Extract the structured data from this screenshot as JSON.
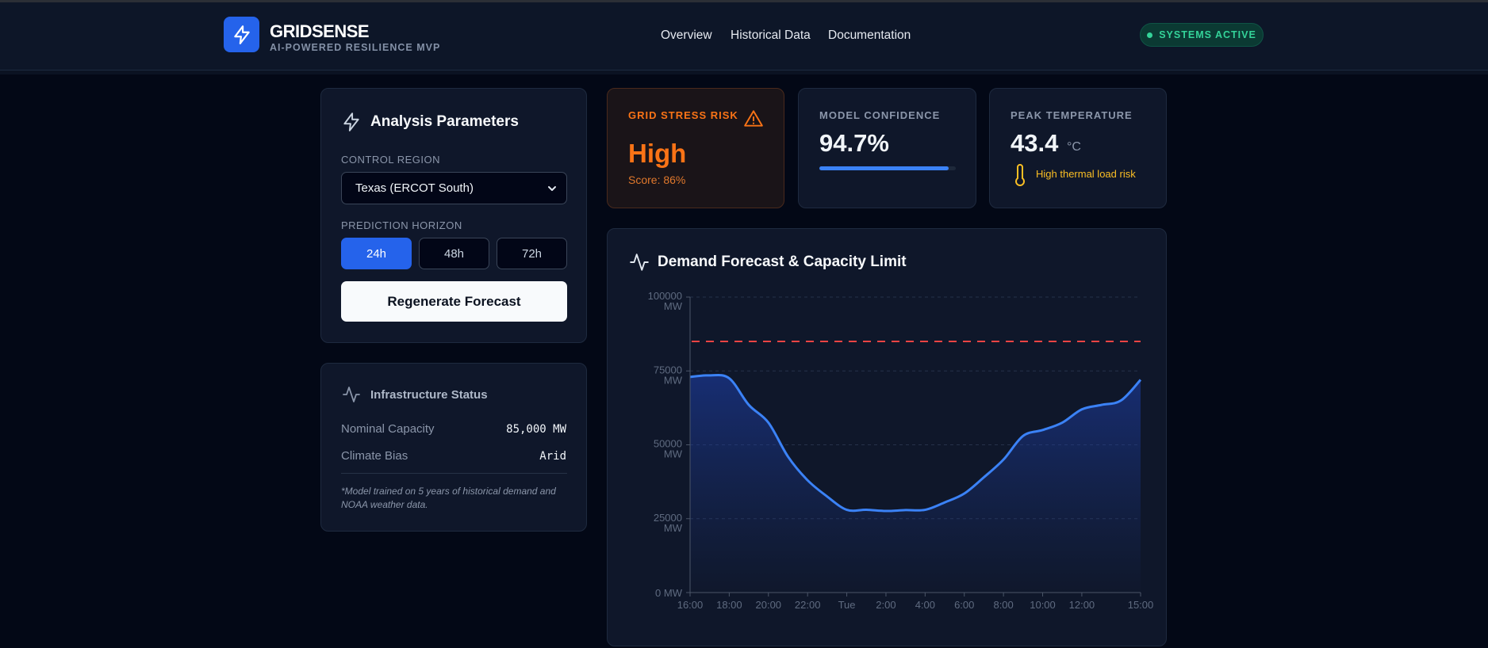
{
  "header": {
    "brand_title": "GRIDSENSE",
    "brand_subtitle": "AI-POWERED RESILIENCE MVP",
    "nav": [
      "Overview",
      "Historical Data",
      "Documentation"
    ],
    "status": "SYSTEMS ACTIVE"
  },
  "params": {
    "title": "Analysis Parameters",
    "region_label": "CONTROL REGION",
    "region_value": "Texas (ERCOT South)",
    "horizon_label": "PREDICTION HORIZON",
    "horizons": [
      "24h",
      "48h",
      "72h"
    ],
    "selected_horizon": "24h",
    "regenerate_label": "Regenerate Forecast"
  },
  "infra": {
    "title": "Infrastructure Status",
    "capacity_label": "Nominal Capacity",
    "capacity_value": "85,000 MW",
    "climate_label": "Climate Bias",
    "climate_value": "Arid",
    "note": "*Model trained on 5 years of historical demand and NOAA weather data."
  },
  "stats": {
    "risk_label": "GRID STRESS RISK",
    "risk_value": "High",
    "risk_score": "Score: 86%",
    "confidence_label": "MODEL CONFIDENCE",
    "confidence_value": "94.7%",
    "confidence_fraction": 0.947,
    "temp_label": "PEAK TEMPERATURE",
    "temp_value": "43.4",
    "temp_unit": "°C",
    "temp_note": "High thermal load risk"
  },
  "colors": {
    "accent": "#2563eb",
    "risk": "#f97316",
    "success": "#34d399",
    "capacity_line": "#ef4444",
    "demand_line": "#3b82f6",
    "warning": "#fbbf24"
  },
  "chart_data": {
    "type": "area",
    "title": "Demand Forecast & Capacity Limit",
    "y_ticks": [
      [
        "100000",
        "MW"
      ],
      [
        "75000",
        "MW"
      ],
      [
        "50000",
        "MW"
      ],
      [
        "25000",
        "MW"
      ],
      [
        "0 MW"
      ]
    ],
    "ylim": [
      0,
      100000
    ],
    "x_ticks": [
      {
        "h": 0,
        "label": "16:00"
      },
      {
        "h": 2,
        "label": "18:00"
      },
      {
        "h": 4,
        "label": "20:00"
      },
      {
        "h": 6,
        "label": "22:00"
      },
      {
        "h": 8,
        "label": "Tue"
      },
      {
        "h": 10,
        "label": "2:00"
      },
      {
        "h": 12,
        "label": "4:00"
      },
      {
        "h": 14,
        "label": "6:00"
      },
      {
        "h": 16,
        "label": "8:00"
      },
      {
        "h": 18,
        "label": "10:00"
      },
      {
        "h": 20,
        "label": "12:00"
      },
      {
        "h": 23,
        "label": "15:00"
      }
    ],
    "capacity_limit": 85000,
    "series": [
      {
        "x": [
          0,
          1,
          2,
          3,
          4,
          5,
          6,
          7,
          8,
          9,
          10,
          11,
          12,
          13,
          14,
          15,
          16,
          17,
          18,
          19,
          20,
          21,
          22,
          23
        ],
        "values": [
          73000,
          73500,
          72500,
          63500,
          57500,
          46000,
          38000,
          32500,
          28000,
          28000,
          27600,
          27900,
          28000,
          30500,
          33500,
          39000,
          45000,
          53000,
          55000,
          57500,
          62000,
          63500,
          65000,
          72000
        ]
      }
    ],
    "grid": true
  }
}
